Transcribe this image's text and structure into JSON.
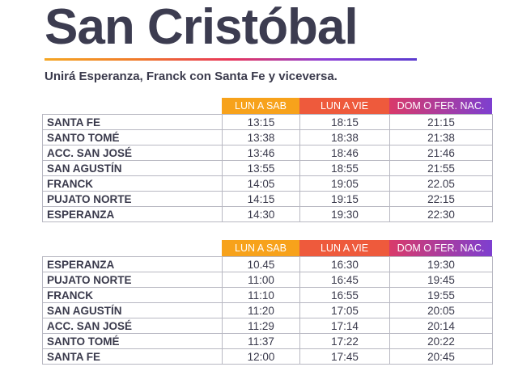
{
  "title": "San Cristóbal",
  "subtitle": "Unirá Esperanza, Franck con Santa Fe y viceversa.",
  "colors": {
    "title": "#3c3c50",
    "header_lun_sab": "#f7a21b",
    "header_lun_vie": "#ee5a3c",
    "header_dom": "#d93a6a",
    "header_dom_end": "#7d3fd0"
  },
  "schedules": [
    {
      "headers": [
        "LUN A SAB",
        "LUN A VIE",
        "DOM O FER. NAC."
      ],
      "rows": [
        {
          "stop": "SANTA FE",
          "lun_sab": "13:15",
          "lun_vie": "18:15",
          "dom": "21:15"
        },
        {
          "stop": "SANTO TOMÉ",
          "lun_sab": "13:38",
          "lun_vie": "18:38",
          "dom": "21:38"
        },
        {
          "stop": "ACC. SAN JOSÉ",
          "lun_sab": "13:46",
          "lun_vie": "18:46",
          "dom": "21:46"
        },
        {
          "stop": "SAN AGUSTÍN",
          "lun_sab": "13:55",
          "lun_vie": "18:55",
          "dom": "21:55"
        },
        {
          "stop": "FRANCK",
          "lun_sab": "14:05",
          "lun_vie": "19:05",
          "dom": "22.05"
        },
        {
          "stop": "PUJATO NORTE",
          "lun_sab": "14:15",
          "lun_vie": "19:15",
          "dom": "22:15"
        },
        {
          "stop": "ESPERANZA",
          "lun_sab": "14:30",
          "lun_vie": "19:30",
          "dom": "22:30"
        }
      ]
    },
    {
      "headers": [
        "LUN A SAB",
        "LUN A VIE",
        "DOM O FER. NAC."
      ],
      "rows": [
        {
          "stop": "ESPERANZA",
          "lun_sab": "10.45",
          "lun_vie": "16:30",
          "dom": "19:30"
        },
        {
          "stop": "PUJATO NORTE",
          "lun_sab": "11:00",
          "lun_vie": "16:45",
          "dom": "19:45"
        },
        {
          "stop": "FRANCK",
          "lun_sab": "11:10",
          "lun_vie": "16:55",
          "dom": "19:55"
        },
        {
          "stop": "SAN AGUSTÍN",
          "lun_sab": "11:20",
          "lun_vie": "17:05",
          "dom": "20:05"
        },
        {
          "stop": "ACC. SAN JOSÉ",
          "lun_sab": "11:29",
          "lun_vie": "17:14",
          "dom": "20:14"
        },
        {
          "stop": "SANTO TOMÉ",
          "lun_sab": "11:37",
          "lun_vie": "17:22",
          "dom": "20:22"
        },
        {
          "stop": "SANTA FE",
          "lun_sab": "12:00",
          "lun_vie": "17:45",
          "dom": "20:45"
        }
      ]
    }
  ]
}
